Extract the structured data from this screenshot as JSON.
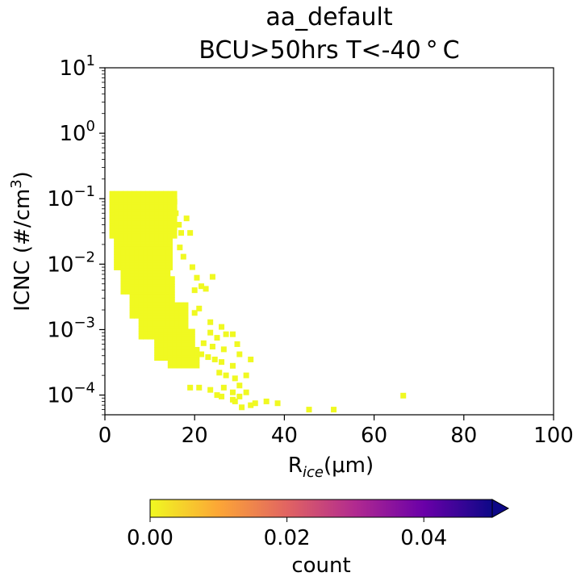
{
  "chart_data": {
    "type": "heatmap",
    "title": "aa_default",
    "subtitle": "BCU>50hrs T<-40$^\\circ$C",
    "title_line2": "BCU>50hrs T<-40 ° C",
    "xlabel": "R",
    "xlabel_sub": "ice",
    "xlabel_unit": "(μm)",
    "ylabel": "ICNC (#/cm",
    "ylabel_sup": "3",
    "ylabel_close": ")",
    "xlim": [
      0,
      100
    ],
    "ylim": [
      5e-05,
      10
    ],
    "yscale": "log",
    "x_ticks": [
      0,
      20,
      40,
      60,
      80,
      100
    ],
    "x_tick_labels": [
      "0",
      "20",
      "40",
      "60",
      "80",
      "100"
    ],
    "y_ticks": [
      0.0001,
      0.001,
      0.01,
      0.1,
      1,
      10
    ],
    "y_tick_exponents": [
      "−4",
      "−3",
      "−2",
      "−1",
      "0",
      "1"
    ],
    "y_tick_base": "10",
    "grid": false,
    "cell_color": "#f0f921",
    "colorbar": {
      "label": "count",
      "range": [
        0,
        0.05
      ],
      "ticks": [
        0,
        0.02,
        0.04
      ],
      "tick_labels": [
        "0.00",
        "0.02",
        "0.04"
      ],
      "colormap_stops": [
        "#f0f921",
        "#fca636",
        "#e16462",
        "#b12a90",
        "#6a00a8",
        "#0d0887"
      ],
      "extend": "max"
    },
    "band_columns": [
      {
        "r": [
          1.0,
          15.5
        ],
        "icnc": [
          0.025,
          0.12
        ]
      },
      {
        "r": [
          2.0,
          15.0
        ],
        "icnc": [
          0.0082,
          0.06
        ]
      },
      {
        "r": [
          3.5,
          14.5
        ],
        "icnc": [
          0.0035,
          0.018
        ]
      },
      {
        "r": [
          5.5,
          15.5
        ],
        "icnc": [
          0.0015,
          0.0065
        ]
      },
      {
        "r": [
          7.5,
          18.0
        ],
        "icnc": [
          0.00072,
          0.0025
        ]
      },
      {
        "r": [
          11.0,
          19.5
        ],
        "icnc": [
          0.00034,
          0.001
        ]
      },
      {
        "r": [
          14.0,
          21.0
        ],
        "icnc": [
          0.00026,
          0.0005
        ]
      }
    ],
    "scatter_cells": [
      [
        15.5,
        0.09
      ],
      [
        15.8,
        0.06
      ],
      [
        16.5,
        0.04
      ],
      [
        17.0,
        0.03
      ],
      [
        16.7,
        0.018
      ],
      [
        17.5,
        0.013
      ],
      [
        18.2,
        0.05
      ],
      [
        19.0,
        0.03
      ],
      [
        19.5,
        0.009
      ],
      [
        20.5,
        0.0062
      ],
      [
        20.0,
        0.004
      ],
      [
        21.5,
        0.0046
      ],
      [
        22.5,
        0.0042
      ],
      [
        24.0,
        0.0064
      ],
      [
        21.0,
        0.0021
      ],
      [
        20.0,
        0.0018
      ],
      [
        23.5,
        0.0013
      ],
      [
        23.5,
        0.0009
      ],
      [
        25.0,
        0.00075
      ],
      [
        26.0,
        0.0011
      ],
      [
        27.0,
        0.00085
      ],
      [
        28.5,
        0.00085
      ],
      [
        29.5,
        0.0006
      ],
      [
        22.0,
        0.00062
      ],
      [
        24.0,
        0.00055
      ],
      [
        26.5,
        0.0005
      ],
      [
        21.5,
        0.00042
      ],
      [
        23.0,
        0.00038
      ],
      [
        24.5,
        0.00035
      ],
      [
        26.0,
        0.00032
      ],
      [
        28.5,
        0.00028
      ],
      [
        30.0,
        0.00042
      ],
      [
        32.5,
        0.00035
      ],
      [
        25.5,
        0.00022
      ],
      [
        27.0,
        0.0002
      ],
      [
        29.0,
        0.00018
      ],
      [
        31.5,
        0.0002
      ],
      [
        19.0,
        0.00013
      ],
      [
        21.0,
        0.00013
      ],
      [
        23.5,
        0.00012
      ],
      [
        26.5,
        0.00013
      ],
      [
        28.5,
        0.00011
      ],
      [
        30.0,
        0.00014
      ],
      [
        25.0,
        0.0001
      ],
      [
        28.5,
        8.5e-05
      ],
      [
        30.0,
        9.5e-05
      ],
      [
        31.5,
        0.00011
      ],
      [
        26.0,
        9.5e-05
      ],
      [
        29.0,
        8e-05
      ],
      [
        33.5,
        7.5e-05
      ],
      [
        36.0,
        8e-05
      ],
      [
        32.5,
        7e-05
      ],
      [
        30.5,
        6.5e-05
      ],
      [
        38.5,
        7.5e-05
      ],
      [
        45.5,
        6e-05
      ],
      [
        51.0,
        6e-05
      ],
      [
        66.5,
        9.8e-05
      ]
    ]
  }
}
